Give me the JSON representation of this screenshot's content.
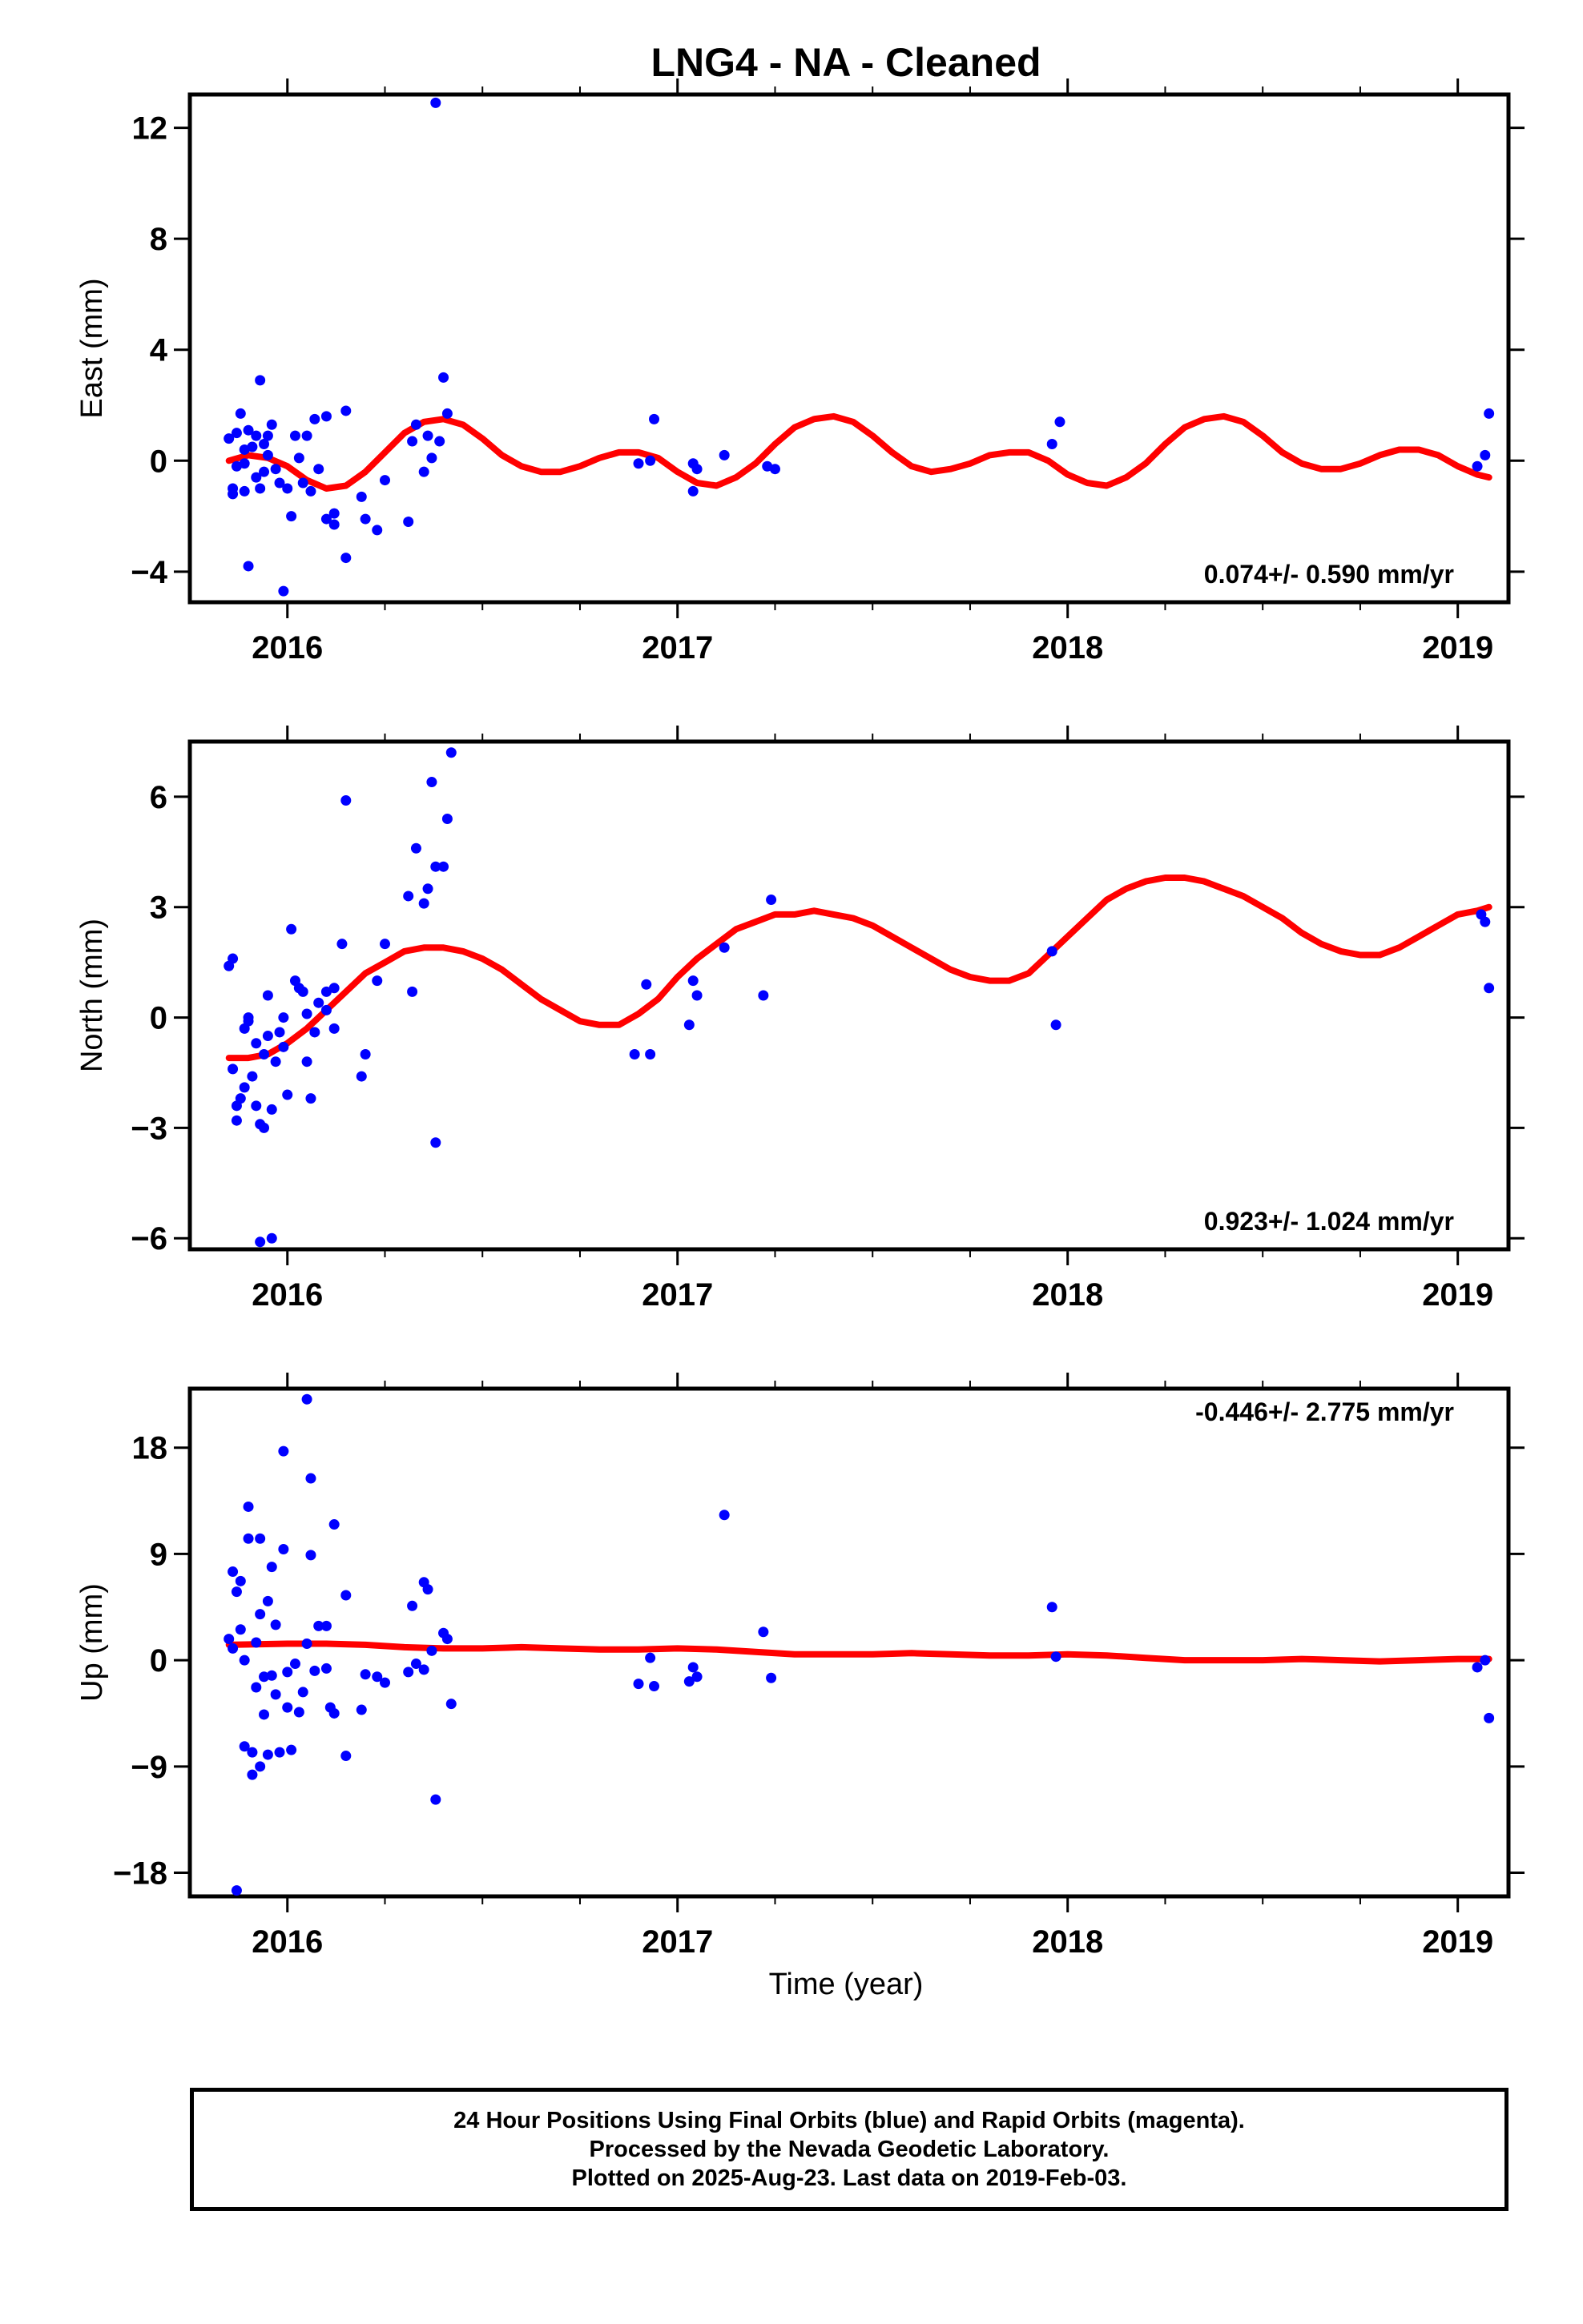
{
  "title": "LNG4  - NA - Cleaned",
  "colors": {
    "points": "#0000ff",
    "fit": "#ff0000",
    "axis": "#000000"
  },
  "xlabel": "Time (year)",
  "caption": [
    "24 Hour Positions Using Final Orbits (blue) and Rapid Orbits (magenta).",
    "Processed by the Nevada Geodetic Laboratory.",
    "Plotted on 2025-Aug-23. Last data on 2019-Feb-03."
  ],
  "chart_data": [
    {
      "type": "scatter",
      "name": "east",
      "ylabel": "East (mm)",
      "rate": "0.074+/- 0.590 mm/yr",
      "rate_position": "bottom-right",
      "xlim": [
        2015.75,
        2019.13
      ],
      "ylim": [
        -5.1,
        13.2
      ],
      "yticks": [
        -4,
        0,
        4,
        8,
        12
      ],
      "xticks": [
        2016,
        2017,
        2018,
        2019
      ],
      "points": [
        [
          2015.85,
          0.8
        ],
        [
          2015.86,
          -1.0
        ],
        [
          2015.86,
          -1.2
        ],
        [
          2015.87,
          1.0
        ],
        [
          2015.87,
          -0.2
        ],
        [
          2015.88,
          1.7
        ],
        [
          2015.89,
          -0.1
        ],
        [
          2015.89,
          0.4
        ],
        [
          2015.89,
          -1.1
        ],
        [
          2015.9,
          1.1
        ],
        [
          2015.9,
          -3.8
        ],
        [
          2015.91,
          0.5
        ],
        [
          2015.92,
          -0.6
        ],
        [
          2015.92,
          0.9
        ],
        [
          2015.93,
          2.9
        ],
        [
          2015.93,
          -1.0
        ],
        [
          2015.94,
          0.6
        ],
        [
          2015.94,
          -0.4
        ],
        [
          2015.95,
          0.2
        ],
        [
          2015.95,
          0.9
        ],
        [
          2015.96,
          1.3
        ],
        [
          2015.97,
          -0.3
        ],
        [
          2015.98,
          -0.8
        ],
        [
          2015.99,
          -4.7
        ],
        [
          2016.0,
          -1.0
        ],
        [
          2016.01,
          -2.0
        ],
        [
          2016.02,
          0.9
        ],
        [
          2016.03,
          0.1
        ],
        [
          2016.04,
          -0.8
        ],
        [
          2016.05,
          0.9
        ],
        [
          2016.06,
          -1.1
        ],
        [
          2016.07,
          1.5
        ],
        [
          2016.08,
          -0.3
        ],
        [
          2016.1,
          1.6
        ],
        [
          2016.1,
          -2.1
        ],
        [
          2016.12,
          -1.9
        ],
        [
          2016.12,
          -2.3
        ],
        [
          2016.15,
          -3.5
        ],
        [
          2016.15,
          1.8
        ],
        [
          2016.19,
          -1.3
        ],
        [
          2016.2,
          -2.1
        ],
        [
          2016.23,
          -2.5
        ],
        [
          2016.25,
          -0.7
        ],
        [
          2016.31,
          -2.2
        ],
        [
          2016.32,
          0.7
        ],
        [
          2016.33,
          1.3
        ],
        [
          2016.35,
          -0.4
        ],
        [
          2016.36,
          0.9
        ],
        [
          2016.37,
          0.1
        ],
        [
          2016.38,
          12.9
        ],
        [
          2016.39,
          0.7
        ],
        [
          2016.4,
          3.0
        ],
        [
          2016.41,
          1.7
        ],
        [
          2016.9,
          -0.1
        ],
        [
          2016.93,
          0.0
        ],
        [
          2016.94,
          1.5
        ],
        [
          2017.04,
          -0.1
        ],
        [
          2017.04,
          -1.1
        ],
        [
          2017.05,
          -0.3
        ],
        [
          2017.12,
          0.2
        ],
        [
          2017.23,
          -0.2
        ],
        [
          2017.25,
          -0.3
        ],
        [
          2017.96,
          0.6
        ],
        [
          2017.98,
          1.4
        ],
        [
          2019.05,
          -0.2
        ],
        [
          2019.07,
          0.2
        ],
        [
          2019.08,
          1.7
        ]
      ],
      "fit": {
        "x": [
          2015.85,
          2015.9,
          2015.95,
          2016.0,
          2016.05,
          2016.1,
          2016.15,
          2016.2,
          2016.25,
          2016.3,
          2016.35,
          2016.4,
          2016.45,
          2016.5,
          2016.55,
          2016.6,
          2016.65,
          2016.7,
          2016.75,
          2016.8,
          2016.85,
          2016.9,
          2016.95,
          2017.0,
          2017.05,
          2017.1,
          2017.15,
          2017.2,
          2017.25,
          2017.3,
          2017.35,
          2017.4,
          2017.45,
          2017.5,
          2017.55,
          2017.6,
          2017.65,
          2017.7,
          2017.75,
          2017.8,
          2017.85,
          2017.9,
          2017.95,
          2018.0,
          2018.05,
          2018.1,
          2018.15,
          2018.2,
          2018.25,
          2018.3,
          2018.35,
          2018.4,
          2018.45,
          2018.5,
          2018.55,
          2018.6,
          2018.65,
          2018.7,
          2018.75,
          2018.8,
          2018.85,
          2018.9,
          2018.95,
          2019.0,
          2019.05,
          2019.08
        ],
        "y": [
          0.0,
          0.2,
          0.1,
          -0.2,
          -0.7,
          -1.0,
          -0.9,
          -0.4,
          0.3,
          1.0,
          1.4,
          1.5,
          1.3,
          0.8,
          0.2,
          -0.2,
          -0.4,
          -0.4,
          -0.2,
          0.1,
          0.3,
          0.3,
          0.1,
          -0.4,
          -0.8,
          -0.9,
          -0.6,
          -0.1,
          0.6,
          1.2,
          1.5,
          1.6,
          1.4,
          0.9,
          0.3,
          -0.2,
          -0.4,
          -0.3,
          -0.1,
          0.2,
          0.3,
          0.3,
          0.0,
          -0.5,
          -0.8,
          -0.9,
          -0.6,
          -0.1,
          0.6,
          1.2,
          1.5,
          1.6,
          1.4,
          0.9,
          0.3,
          -0.1,
          -0.3,
          -0.3,
          -0.1,
          0.2,
          0.4,
          0.4,
          0.2,
          -0.2,
          -0.5,
          -0.6
        ]
      }
    },
    {
      "type": "scatter",
      "name": "north",
      "ylabel": "North (mm)",
      "rate": "0.923+/- 1.024 mm/yr",
      "rate_position": "bottom-right",
      "xlim": [
        2015.75,
        2019.13
      ],
      "ylim": [
        -6.3,
        7.5
      ],
      "yticks": [
        -6,
        -3,
        0,
        3,
        6
      ],
      "xticks": [
        2016,
        2017,
        2018,
        2019
      ],
      "points": [
        [
          2015.85,
          1.4
        ],
        [
          2015.86,
          1.6
        ],
        [
          2015.86,
          -1.4
        ],
        [
          2015.87,
          -2.4
        ],
        [
          2015.87,
          -2.8
        ],
        [
          2015.88,
          -2.2
        ],
        [
          2015.89,
          -0.3
        ],
        [
          2015.89,
          -1.9
        ],
        [
          2015.9,
          -0.1
        ],
        [
          2015.9,
          0.0
        ],
        [
          2015.91,
          -1.6
        ],
        [
          2015.92,
          -0.7
        ],
        [
          2015.92,
          -2.4
        ],
        [
          2015.93,
          -2.9
        ],
        [
          2015.93,
          -6.1
        ],
        [
          2015.94,
          -1.0
        ],
        [
          2015.94,
          -3.0
        ],
        [
          2015.95,
          -0.5
        ],
        [
          2015.95,
          0.6
        ],
        [
          2015.96,
          -2.5
        ],
        [
          2015.96,
          -6.0
        ],
        [
          2015.97,
          -1.2
        ],
        [
          2015.98,
          -0.4
        ],
        [
          2015.99,
          0.0
        ],
        [
          2015.99,
          -0.8
        ],
        [
          2016.0,
          -2.1
        ],
        [
          2016.01,
          2.4
        ],
        [
          2016.02,
          1.0
        ],
        [
          2016.03,
          0.8
        ],
        [
          2016.04,
          0.7
        ],
        [
          2016.05,
          -1.2
        ],
        [
          2016.05,
          0.1
        ],
        [
          2016.06,
          -2.2
        ],
        [
          2016.07,
          -0.4
        ],
        [
          2016.08,
          0.4
        ],
        [
          2016.1,
          0.2
        ],
        [
          2016.1,
          0.7
        ],
        [
          2016.12,
          0.8
        ],
        [
          2016.12,
          -0.3
        ],
        [
          2016.14,
          2.0
        ],
        [
          2016.15,
          5.9
        ],
        [
          2016.19,
          -1.6
        ],
        [
          2016.2,
          -1.0
        ],
        [
          2016.23,
          1.0
        ],
        [
          2016.25,
          2.0
        ],
        [
          2016.31,
          3.3
        ],
        [
          2016.32,
          0.7
        ],
        [
          2016.33,
          4.6
        ],
        [
          2016.35,
          3.1
        ],
        [
          2016.36,
          3.5
        ],
        [
          2016.37,
          6.4
        ],
        [
          2016.38,
          -3.4
        ],
        [
          2016.38,
          4.1
        ],
        [
          2016.4,
          4.1
        ],
        [
          2016.41,
          5.4
        ],
        [
          2016.42,
          7.2
        ],
        [
          2016.89,
          -1.0
        ],
        [
          2016.92,
          0.9
        ],
        [
          2016.93,
          -1.0
        ],
        [
          2017.03,
          -0.2
        ],
        [
          2017.04,
          1.0
        ],
        [
          2017.05,
          0.6
        ],
        [
          2017.12,
          1.9
        ],
        [
          2017.22,
          0.6
        ],
        [
          2017.24,
          3.2
        ],
        [
          2017.96,
          1.8
        ],
        [
          2017.97,
          -0.2
        ],
        [
          2019.06,
          2.8
        ],
        [
          2019.07,
          2.6
        ],
        [
          2019.08,
          0.8
        ]
      ],
      "fit": {
        "x": [
          2015.85,
          2015.9,
          2015.95,
          2016.0,
          2016.05,
          2016.1,
          2016.15,
          2016.2,
          2016.25,
          2016.3,
          2016.35,
          2016.4,
          2016.45,
          2016.5,
          2016.55,
          2016.6,
          2016.65,
          2016.7,
          2016.75,
          2016.8,
          2016.85,
          2016.9,
          2016.95,
          2017.0,
          2017.05,
          2017.1,
          2017.15,
          2017.2,
          2017.25,
          2017.3,
          2017.35,
          2017.4,
          2017.45,
          2017.5,
          2017.55,
          2017.6,
          2017.65,
          2017.7,
          2017.75,
          2017.8,
          2017.85,
          2017.9,
          2017.95,
          2018.0,
          2018.05,
          2018.1,
          2018.15,
          2018.2,
          2018.25,
          2018.3,
          2018.35,
          2018.4,
          2018.45,
          2018.5,
          2018.55,
          2018.6,
          2018.65,
          2018.7,
          2018.75,
          2018.8,
          2018.85,
          2018.9,
          2018.95,
          2019.0,
          2019.05,
          2019.08
        ],
        "y": [
          -1.1,
          -1.1,
          -1.0,
          -0.7,
          -0.3,
          0.2,
          0.7,
          1.2,
          1.5,
          1.8,
          1.9,
          1.9,
          1.8,
          1.6,
          1.3,
          0.9,
          0.5,
          0.2,
          -0.1,
          -0.2,
          -0.2,
          0.1,
          0.5,
          1.1,
          1.6,
          2.0,
          2.4,
          2.6,
          2.8,
          2.8,
          2.9,
          2.8,
          2.7,
          2.5,
          2.2,
          1.9,
          1.6,
          1.3,
          1.1,
          1.0,
          1.0,
          1.2,
          1.7,
          2.2,
          2.7,
          3.2,
          3.5,
          3.7,
          3.8,
          3.8,
          3.7,
          3.5,
          3.3,
          3.0,
          2.7,
          2.3,
          2.0,
          1.8,
          1.7,
          1.7,
          1.9,
          2.2,
          2.5,
          2.8,
          2.9,
          3.0
        ]
      }
    },
    {
      "type": "scatter",
      "name": "up",
      "ylabel": "Up (mm)",
      "rate": "-0.446+/- 2.775 mm/yr",
      "rate_position": "top-right",
      "xlim": [
        2015.75,
        2019.13
      ],
      "ylim": [
        -20,
        23
      ],
      "yticks": [
        -18,
        -9,
        0,
        9,
        18
      ],
      "xticks": [
        2016,
        2017,
        2018,
        2019
      ],
      "points": [
        [
          2015.85,
          1.8
        ],
        [
          2015.86,
          7.5
        ],
        [
          2015.86,
          1.0
        ],
        [
          2015.87,
          -19.5
        ],
        [
          2015.87,
          5.8
        ],
        [
          2015.88,
          6.7
        ],
        [
          2015.88,
          2.6
        ],
        [
          2015.89,
          0.0
        ],
        [
          2015.89,
          -7.3
        ],
        [
          2015.9,
          13.0
        ],
        [
          2015.9,
          10.3
        ],
        [
          2015.91,
          -7.8
        ],
        [
          2015.91,
          -9.7
        ],
        [
          2015.92,
          1.5
        ],
        [
          2015.92,
          -2.3
        ],
        [
          2015.93,
          10.3
        ],
        [
          2015.93,
          3.9
        ],
        [
          2015.93,
          -9.0
        ],
        [
          2015.94,
          -1.4
        ],
        [
          2015.94,
          -4.6
        ],
        [
          2015.95,
          5.0
        ],
        [
          2015.95,
          -8.0
        ],
        [
          2015.96,
          -1.3
        ],
        [
          2015.96,
          7.9
        ],
        [
          2015.97,
          3.0
        ],
        [
          2015.97,
          -2.9
        ],
        [
          2015.98,
          -7.8
        ],
        [
          2015.99,
          17.7
        ],
        [
          2015.99,
          9.4
        ],
        [
          2016.0,
          -1.0
        ],
        [
          2016.0,
          -4.0
        ],
        [
          2016.01,
          -7.6
        ],
        [
          2016.02,
          -0.3
        ],
        [
          2016.03,
          -4.4
        ],
        [
          2016.04,
          -2.7
        ],
        [
          2016.05,
          1.4
        ],
        [
          2016.05,
          22.1
        ],
        [
          2016.06,
          15.4
        ],
        [
          2016.06,
          8.9
        ],
        [
          2016.07,
          -0.9
        ],
        [
          2016.08,
          2.9
        ],
        [
          2016.1,
          -0.7
        ],
        [
          2016.1,
          2.9
        ],
        [
          2016.11,
          -4.0
        ],
        [
          2016.12,
          11.5
        ],
        [
          2016.12,
          -4.5
        ],
        [
          2016.15,
          5.5
        ],
        [
          2016.15,
          -8.1
        ],
        [
          2016.19,
          -4.2
        ],
        [
          2016.2,
          -1.2
        ],
        [
          2016.23,
          -1.4
        ],
        [
          2016.25,
          -1.9
        ],
        [
          2016.31,
          -1.0
        ],
        [
          2016.32,
          4.6
        ],
        [
          2016.33,
          -0.3
        ],
        [
          2016.35,
          -0.8
        ],
        [
          2016.35,
          6.6
        ],
        [
          2016.36,
          6.0
        ],
        [
          2016.37,
          0.8
        ],
        [
          2016.38,
          -11.8
        ],
        [
          2016.4,
          2.3
        ],
        [
          2016.41,
          1.8
        ],
        [
          2016.42,
          -3.7
        ],
        [
          2016.9,
          -2.0
        ],
        [
          2016.93,
          0.2
        ],
        [
          2016.94,
          -2.2
        ],
        [
          2017.03,
          -1.8
        ],
        [
          2017.04,
          -0.6
        ],
        [
          2017.05,
          -1.4
        ],
        [
          2017.12,
          12.3
        ],
        [
          2017.22,
          2.4
        ],
        [
          2017.24,
          -1.5
        ],
        [
          2017.96,
          4.5
        ],
        [
          2017.97,
          0.3
        ],
        [
          2019.05,
          -0.6
        ],
        [
          2019.07,
          0.0
        ],
        [
          2019.08,
          -4.9
        ]
      ],
      "fit": {
        "x": [
          2015.85,
          2016.0,
          2016.1,
          2016.2,
          2016.3,
          2016.4,
          2016.5,
          2016.6,
          2016.7,
          2016.8,
          2016.9,
          2017.0,
          2017.1,
          2017.2,
          2017.3,
          2017.4,
          2017.5,
          2017.6,
          2017.7,
          2017.8,
          2017.9,
          2018.0,
          2018.1,
          2018.2,
          2018.3,
          2018.4,
          2018.5,
          2018.6,
          2018.7,
          2018.8,
          2018.9,
          2019.0,
          2019.08
        ],
        "y": [
          1.3,
          1.4,
          1.4,
          1.3,
          1.1,
          1.0,
          1.0,
          1.1,
          1.0,
          0.9,
          0.9,
          1.0,
          0.9,
          0.7,
          0.5,
          0.5,
          0.5,
          0.6,
          0.5,
          0.4,
          0.4,
          0.5,
          0.4,
          0.2,
          0.0,
          0.0,
          0.0,
          0.1,
          0.0,
          -0.1,
          0.0,
          0.1,
          0.1
        ]
      }
    }
  ]
}
